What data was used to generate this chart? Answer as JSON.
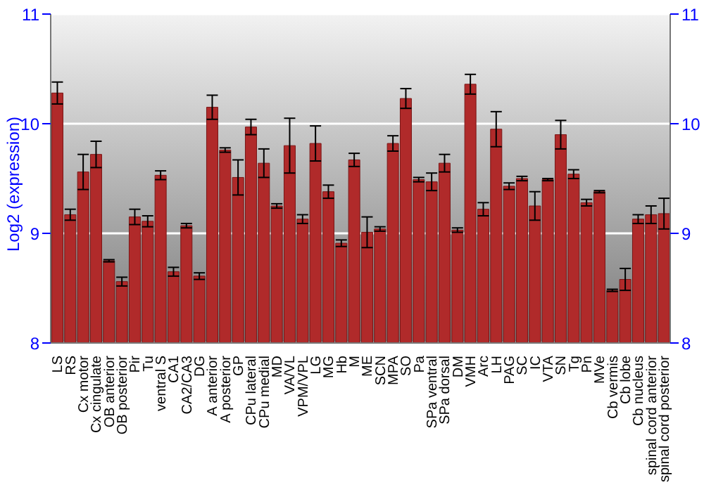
{
  "chart_data": {
    "type": "bar",
    "ylabel": "Log2 (expression)",
    "categories": [
      "LS",
      "RS",
      "Cx motor",
      "Cx cingulate",
      "OB anterior",
      "OB posterior",
      "Pir",
      "Tu",
      "ventral S",
      "CA1",
      "CA2/CA3",
      "DG",
      "A anterior",
      "A posterior",
      "GP",
      "CPu lateral",
      "CPu medial",
      "MD",
      "VA/VL",
      "VPM/VPL",
      "LG",
      "MG",
      "Hb",
      "M",
      "ME",
      "SCN",
      "MPA",
      "SO",
      "Pa",
      "SPa ventral",
      "SPa dorsal",
      "DM",
      "VMH",
      "Arc",
      "LH",
      "PAG",
      "SC",
      "IC",
      "VTA",
      "SN",
      "Tg",
      "Pn",
      "MVe",
      "Cb vermis",
      "Cb lobe",
      "Cb nucleus",
      "spinal cord anterior",
      "spinal cord posterior"
    ],
    "values": [
      10.28,
      9.17,
      9.56,
      9.72,
      8.75,
      8.56,
      9.15,
      9.11,
      9.53,
      8.65,
      9.07,
      8.61,
      10.15,
      9.76,
      9.51,
      9.97,
      9.64,
      9.25,
      9.8,
      9.13,
      9.82,
      9.38,
      8.91,
      9.67,
      9.01,
      9.04,
      9.82,
      10.23,
      9.49,
      9.47,
      9.64,
      9.03,
      10.36,
      9.22,
      9.95,
      9.43,
      9.5,
      9.25,
      9.49,
      9.9,
      9.54,
      9.28,
      9.38,
      8.48,
      8.58,
      9.13,
      9.17,
      9.18
    ],
    "errors": [
      0.1,
      0.05,
      0.16,
      0.12,
      0.01,
      0.04,
      0.07,
      0.05,
      0.04,
      0.04,
      0.02,
      0.03,
      0.11,
      0.02,
      0.16,
      0.07,
      0.13,
      0.02,
      0.25,
      0.04,
      0.16,
      0.06,
      0.03,
      0.06,
      0.14,
      0.02,
      0.07,
      0.09,
      0.02,
      0.08,
      0.08,
      0.02,
      0.09,
      0.06,
      0.16,
      0.03,
      0.02,
      0.13,
      0.01,
      0.13,
      0.04,
      0.03,
      0.01,
      0.01,
      0.1,
      0.04,
      0.08,
      0.14
    ],
    "color": "#b02a2a",
    "ylim": [
      8,
      11
    ],
    "yticks": [
      8,
      9,
      10,
      11
    ],
    "y2lim": [
      8,
      11
    ],
    "y2ticks": [
      8,
      9,
      10,
      11
    ],
    "grid": "y"
  }
}
